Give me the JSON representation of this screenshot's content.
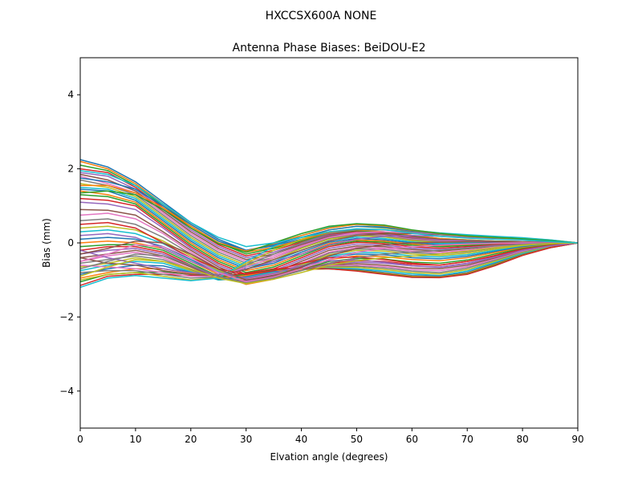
{
  "suptitle": "HXCCSX600A      NONE",
  "chart_data": {
    "type": "line",
    "title": "Antenna Phase Biases: BeiDOU-E2",
    "xlabel": "Elvation angle (degrees)",
    "ylabel": "Bias (mm)",
    "xlim": [
      0,
      90
    ],
    "ylim": [
      -5,
      5
    ],
    "x_ticks": [
      0,
      10,
      20,
      30,
      40,
      50,
      60,
      70,
      80,
      90
    ],
    "y_ticks": [
      -4,
      -2,
      0,
      2,
      4
    ],
    "grid": false,
    "legend": "none",
    "x": [
      0,
      5,
      10,
      15,
      20,
      25,
      30,
      35,
      40,
      45,
      50,
      55,
      60,
      65,
      70,
      75,
      80,
      85,
      90
    ],
    "series_count_note_free": true,
    "palette": [
      "#1f77b4",
      "#ff7f0e",
      "#2ca02c",
      "#d62728",
      "#9467bd",
      "#8c564b",
      "#e377c2",
      "#7f7f7f",
      "#bcbd22",
      "#17becf"
    ],
    "series": [
      {
        "values": [
          2.25,
          2.05,
          1.65,
          1.1,
          0.55,
          0.1,
          -0.2,
          -0.08,
          0.1,
          0.3,
          0.35,
          0.3,
          0.2,
          0.12,
          0.08,
          0.05,
          0.04,
          0.02,
          0.0
        ]
      },
      {
        "values": [
          2.2,
          2.0,
          1.6,
          1.05,
          0.5,
          0.05,
          -0.25,
          -0.12,
          0.08,
          0.28,
          0.34,
          0.3,
          0.2,
          0.12,
          0.08,
          0.05,
          0.04,
          0.02,
          0.0
        ]
      },
      {
        "values": [
          2.1,
          1.95,
          1.55,
          1.0,
          0.45,
          0.0,
          -0.3,
          -0.15,
          0.05,
          0.25,
          0.32,
          0.28,
          0.18,
          0.1,
          0.07,
          0.05,
          0.04,
          0.02,
          0.0
        ]
      },
      {
        "values": [
          2.0,
          1.9,
          1.5,
          0.95,
          0.4,
          -0.05,
          -0.35,
          -0.2,
          0.02,
          0.22,
          0.3,
          0.26,
          0.16,
          0.09,
          0.06,
          0.04,
          0.03,
          0.02,
          0.0
        ]
      },
      {
        "values": [
          1.9,
          1.8,
          1.45,
          0.9,
          0.35,
          -0.1,
          -0.4,
          -0.25,
          -0.02,
          0.2,
          0.28,
          0.24,
          0.14,
          0.08,
          0.06,
          0.04,
          0.03,
          0.02,
          0.0
        ]
      },
      {
        "values": [
          1.85,
          1.7,
          1.4,
          0.85,
          0.3,
          -0.15,
          -0.45,
          -0.3,
          -0.05,
          0.18,
          0.26,
          0.22,
          0.12,
          0.06,
          0.05,
          0.04,
          0.03,
          0.02,
          0.0
        ]
      },
      {
        "values": [
          1.8,
          1.6,
          1.35,
          0.8,
          0.25,
          -0.2,
          -0.5,
          -0.35,
          -0.08,
          0.15,
          0.24,
          0.2,
          0.1,
          0.05,
          0.04,
          0.03,
          0.03,
          0.02,
          0.0
        ]
      },
      {
        "values": [
          1.7,
          1.55,
          1.3,
          0.75,
          0.2,
          -0.25,
          -0.55,
          -0.4,
          -0.12,
          0.12,
          0.22,
          0.18,
          0.08,
          0.03,
          0.03,
          0.03,
          0.02,
          0.01,
          0.0
        ]
      },
      {
        "values": [
          1.6,
          1.5,
          1.25,
          0.7,
          0.15,
          -0.3,
          -0.6,
          -0.45,
          -0.15,
          0.1,
          0.2,
          0.16,
          0.06,
          0.01,
          0.02,
          0.02,
          0.02,
          0.01,
          0.0
        ]
      },
      {
        "values": [
          1.5,
          1.45,
          1.2,
          0.65,
          0.1,
          -0.35,
          -0.65,
          -0.5,
          -0.2,
          0.06,
          0.16,
          0.12,
          0.03,
          -0.02,
          0.0,
          0.01,
          0.01,
          0.01,
          0.0
        ]
      },
      {
        "values": [
          1.45,
          1.4,
          1.15,
          0.6,
          0.05,
          -0.4,
          -0.7,
          -0.55,
          -0.25,
          0.02,
          0.12,
          0.08,
          0.0,
          -0.05,
          -0.02,
          0.0,
          0.01,
          0.01,
          0.0
        ]
      },
      {
        "values": [
          1.4,
          1.3,
          1.1,
          0.55,
          0.0,
          -0.45,
          -0.75,
          -0.6,
          -0.3,
          -0.02,
          0.08,
          0.05,
          -0.03,
          -0.08,
          -0.05,
          -0.02,
          0.0,
          0.0,
          0.0
        ]
      },
      {
        "values": [
          1.3,
          1.25,
          1.05,
          0.5,
          -0.05,
          -0.5,
          -0.8,
          -0.65,
          -0.35,
          -0.06,
          0.05,
          0.02,
          -0.06,
          -0.1,
          -0.07,
          -0.03,
          -0.01,
          0.0,
          0.0
        ]
      },
      {
        "values": [
          1.2,
          1.15,
          1.0,
          0.45,
          -0.1,
          -0.55,
          -0.85,
          -0.7,
          -0.4,
          -0.1,
          0.02,
          -0.02,
          -0.1,
          -0.14,
          -0.1,
          -0.05,
          -0.02,
          0.0,
          0.0
        ]
      },
      {
        "values": [
          1.1,
          1.05,
          0.9,
          0.4,
          -0.15,
          -0.6,
          -0.9,
          -0.75,
          -0.45,
          -0.15,
          -0.03,
          -0.06,
          -0.14,
          -0.18,
          -0.13,
          -0.07,
          -0.03,
          -0.01,
          0.0
        ]
      },
      {
        "values": [
          0.9,
          0.88,
          0.75,
          0.3,
          -0.2,
          -0.65,
          -0.95,
          -0.8,
          -0.5,
          -0.2,
          -0.08,
          -0.1,
          -0.18,
          -0.22,
          -0.16,
          -0.09,
          -0.04,
          -0.01,
          0.0
        ]
      },
      {
        "values": [
          0.75,
          0.8,
          0.65,
          0.25,
          -0.25,
          -0.7,
          -1.0,
          -0.85,
          -0.55,
          -0.25,
          -0.12,
          -0.14,
          -0.22,
          -0.26,
          -0.2,
          -0.11,
          -0.05,
          -0.02,
          0.0
        ]
      },
      {
        "values": [
          0.6,
          0.65,
          0.5,
          0.15,
          -0.3,
          -0.72,
          -1.02,
          -0.88,
          -0.58,
          -0.28,
          -0.16,
          -0.18,
          -0.26,
          -0.3,
          -0.24,
          -0.14,
          -0.06,
          -0.02,
          0.0
        ]
      },
      {
        "values": [
          0.4,
          0.45,
          0.35,
          0.05,
          -0.35,
          -0.75,
          -1.05,
          -0.9,
          -0.6,
          -0.32,
          -0.2,
          -0.22,
          -0.3,
          -0.34,
          -0.28,
          -0.17,
          -0.08,
          -0.03,
          0.0
        ]
      },
      {
        "values": [
          0.3,
          0.35,
          0.25,
          -0.02,
          -0.4,
          -0.78,
          -1.08,
          -0.92,
          -0.63,
          -0.36,
          -0.25,
          -0.27,
          -0.35,
          -0.38,
          -0.32,
          -0.2,
          -0.1,
          -0.04,
          0.0
        ]
      },
      {
        "values": [
          0.1,
          0.15,
          0.1,
          -0.1,
          -0.45,
          -0.8,
          -1.1,
          -0.95,
          -0.66,
          -0.4,
          -0.3,
          -0.32,
          -0.4,
          -0.43,
          -0.36,
          -0.23,
          -0.11,
          -0.04,
          0.0
        ]
      },
      {
        "values": [
          0.0,
          0.05,
          0.0,
          -0.15,
          -0.5,
          -0.85,
          -1.12,
          -0.98,
          -0.7,
          -0.45,
          -0.35,
          -0.37,
          -0.45,
          -0.48,
          -0.4,
          -0.26,
          -0.13,
          -0.05,
          0.0
        ]
      },
      {
        "values": [
          -0.1,
          -0.05,
          -0.05,
          -0.2,
          -0.55,
          -0.9,
          -1.1,
          -0.95,
          -0.72,
          -0.5,
          -0.42,
          -0.44,
          -0.52,
          -0.55,
          -0.46,
          -0.3,
          -0.15,
          -0.06,
          0.0
        ]
      },
      {
        "values": [
          -0.2,
          -0.1,
          -0.1,
          -0.25,
          -0.6,
          -0.92,
          -1.05,
          -0.9,
          -0.72,
          -0.55,
          -0.48,
          -0.5,
          -0.58,
          -0.6,
          -0.5,
          -0.34,
          -0.17,
          -0.07,
          0.0
        ]
      },
      {
        "values": [
          -0.3,
          -0.2,
          -0.15,
          -0.3,
          -0.62,
          -0.95,
          -1.02,
          -0.88,
          -0.72,
          -0.58,
          -0.52,
          -0.55,
          -0.62,
          -0.65,
          -0.55,
          -0.37,
          -0.19,
          -0.08,
          0.0
        ]
      },
      {
        "values": [
          -0.4,
          -0.3,
          -0.2,
          -0.35,
          -0.65,
          -0.96,
          -1.0,
          -0.86,
          -0.72,
          -0.6,
          -0.56,
          -0.6,
          -0.68,
          -0.7,
          -0.6,
          -0.41,
          -0.21,
          -0.08,
          0.0
        ]
      },
      {
        "values": [
          -0.5,
          -0.35,
          -0.25,
          -0.4,
          -0.7,
          -0.98,
          -0.98,
          -0.84,
          -0.72,
          -0.62,
          -0.6,
          -0.64,
          -0.72,
          -0.75,
          -0.64,
          -0.44,
          -0.23,
          -0.09,
          0.0
        ]
      },
      {
        "values": [
          -0.55,
          -0.45,
          -0.35,
          -0.45,
          -0.72,
          -1.0,
          -0.96,
          -0.82,
          -0.72,
          -0.64,
          -0.63,
          -0.68,
          -0.76,
          -0.8,
          -0.68,
          -0.47,
          -0.25,
          -0.1,
          0.0
        ]
      },
      {
        "values": [
          -0.65,
          -0.55,
          -0.4,
          -0.5,
          -0.75,
          -1.0,
          -0.94,
          -0.8,
          -0.72,
          -0.66,
          -0.66,
          -0.72,
          -0.8,
          -0.84,
          -0.72,
          -0.5,
          -0.27,
          -0.1,
          0.0
        ]
      },
      {
        "values": [
          -0.75,
          -0.6,
          -0.5,
          -0.55,
          -0.78,
          -1.0,
          -0.92,
          -0.78,
          -0.72,
          -0.68,
          -0.7,
          -0.76,
          -0.84,
          -0.88,
          -0.76,
          -0.53,
          -0.29,
          -0.11,
          0.0
        ]
      },
      {
        "values": [
          -0.85,
          -0.7,
          -0.6,
          -0.62,
          -0.8,
          -0.98,
          -0.9,
          -0.76,
          -0.72,
          -0.7,
          -0.72,
          -0.8,
          -0.88,
          -0.9,
          -0.8,
          -0.56,
          -0.31,
          -0.12,
          0.0
        ]
      },
      {
        "values": [
          -0.95,
          -0.8,
          -0.7,
          -0.7,
          -0.82,
          -0.95,
          -0.88,
          -0.74,
          -0.72,
          -0.7,
          -0.74,
          -0.82,
          -0.9,
          -0.92,
          -0.82,
          -0.58,
          -0.32,
          -0.12,
          0.0
        ]
      },
      {
        "values": [
          -1.05,
          -0.85,
          -0.8,
          -0.78,
          -0.85,
          -0.92,
          -0.85,
          -0.72,
          -0.7,
          -0.7,
          -0.75,
          -0.84,
          -0.92,
          -0.93,
          -0.84,
          -0.6,
          -0.33,
          -0.13,
          0.0
        ]
      },
      {
        "values": [
          -1.15,
          -0.9,
          -0.85,
          -0.85,
          -0.88,
          -0.9,
          -0.82,
          -0.7,
          -0.68,
          -0.7,
          -0.76,
          -0.85,
          -0.93,
          -0.94,
          -0.85,
          -0.62,
          -0.34,
          -0.13,
          0.0
        ]
      },
      {
        "values": [
          -0.2,
          -0.4,
          -0.55,
          -0.7,
          -0.8,
          -0.85,
          -0.7,
          -0.5,
          -0.3,
          -0.05,
          0.1,
          0.18,
          0.2,
          0.18,
          0.15,
          0.12,
          0.1,
          0.06,
          0.0
        ]
      },
      {
        "values": [
          -0.4,
          -0.55,
          -0.6,
          -0.75,
          -0.85,
          -0.88,
          -0.72,
          -0.45,
          -0.2,
          0.05,
          0.2,
          0.25,
          0.25,
          0.22,
          0.18,
          0.14,
          0.11,
          0.06,
          0.0
        ]
      },
      {
        "values": [
          -0.6,
          -0.65,
          -0.7,
          -0.8,
          -0.9,
          -0.9,
          -0.65,
          -0.4,
          -0.1,
          0.15,
          0.28,
          0.3,
          0.28,
          0.24,
          0.19,
          0.15,
          0.12,
          0.07,
          0.0
        ]
      },
      {
        "values": [
          -0.8,
          -0.75,
          -0.75,
          -0.85,
          -0.95,
          -0.92,
          -0.6,
          -0.3,
          0.0,
          0.25,
          0.36,
          0.35,
          0.3,
          0.25,
          0.2,
          0.16,
          0.12,
          0.07,
          0.0
        ]
      },
      {
        "values": [
          -1.0,
          -0.85,
          -0.8,
          -0.9,
          -1.0,
          -0.94,
          -0.55,
          -0.2,
          0.1,
          0.35,
          0.45,
          0.4,
          0.32,
          0.26,
          0.21,
          0.17,
          0.13,
          0.08,
          0.0
        ]
      },
      {
        "values": [
          -1.2,
          -0.95,
          -0.88,
          -0.95,
          -1.02,
          -0.95,
          -0.5,
          -0.1,
          0.2,
          0.42,
          0.5,
          0.44,
          0.34,
          0.27,
          0.22,
          0.18,
          0.14,
          0.08,
          0.0
        ]
      },
      {
        "values": [
          1.75,
          1.65,
          1.45,
          1.0,
          0.5,
          0.05,
          -0.2,
          -0.05,
          0.15,
          0.35,
          0.45,
          0.42,
          0.32,
          0.24,
          0.18,
          0.14,
          0.1,
          0.05,
          0.0
        ]
      },
      {
        "values": [
          1.55,
          1.55,
          1.35,
          0.95,
          0.45,
          0.0,
          -0.22,
          -0.02,
          0.2,
          0.4,
          0.5,
          0.46,
          0.34,
          0.25,
          0.18,
          0.14,
          0.1,
          0.05,
          0.0
        ]
      },
      {
        "values": [
          1.35,
          1.4,
          1.3,
          0.9,
          0.4,
          -0.02,
          -0.25,
          0.0,
          0.25,
          0.45,
          0.52,
          0.48,
          0.35,
          0.26,
          0.19,
          0.15,
          0.11,
          0.06,
          0.0
        ]
      },
      {
        "values": [
          0.5,
          0.55,
          0.4,
          0.0,
          -0.4,
          -0.7,
          -0.85,
          -0.75,
          -0.55,
          -0.4,
          -0.38,
          -0.45,
          -0.55,
          -0.6,
          -0.5,
          -0.35,
          -0.18,
          -0.07,
          0.0
        ]
      },
      {
        "values": [
          0.2,
          0.25,
          0.15,
          -0.15,
          -0.5,
          -0.8,
          -0.95,
          -0.82,
          -0.62,
          -0.48,
          -0.46,
          -0.52,
          -0.62,
          -0.66,
          -0.56,
          -0.38,
          -0.2,
          -0.08,
          0.0
        ]
      },
      {
        "values": [
          -0.3,
          -0.15,
          0.05,
          0.0,
          -0.3,
          -0.7,
          -1.0,
          -0.9,
          -0.65,
          -0.35,
          -0.15,
          -0.05,
          0.0,
          0.02,
          0.03,
          0.03,
          0.02,
          0.01,
          0.0
        ]
      },
      {
        "values": [
          -0.5,
          -0.3,
          -0.05,
          -0.1,
          -0.4,
          -0.8,
          -1.05,
          -0.92,
          -0.7,
          -0.45,
          -0.25,
          -0.15,
          -0.1,
          -0.06,
          -0.03,
          -0.01,
          0.0,
          0.0,
          0.0
        ]
      },
      {
        "values": [
          -0.7,
          -0.5,
          -0.3,
          -0.35,
          -0.6,
          -0.9,
          -1.08,
          -0.95,
          -0.75,
          -0.55,
          -0.4,
          -0.3,
          -0.25,
          -0.2,
          -0.14,
          -0.08,
          -0.04,
          -0.01,
          0.0
        ]
      },
      {
        "values": [
          -0.9,
          -0.65,
          -0.45,
          -0.5,
          -0.7,
          -0.95,
          -1.1,
          -0.98,
          -0.8,
          -0.6,
          -0.48,
          -0.4,
          -0.36,
          -0.3,
          -0.22,
          -0.13,
          -0.06,
          -0.02,
          0.0
        ]
      },
      {
        "values": [
          1.95,
          1.85,
          1.55,
          1.05,
          0.55,
          0.15,
          -0.1,
          0.0,
          0.15,
          0.3,
          0.38,
          0.36,
          0.26,
          0.18,
          0.13,
          0.1,
          0.08,
          0.04,
          0.0
        ]
      }
    ]
  }
}
